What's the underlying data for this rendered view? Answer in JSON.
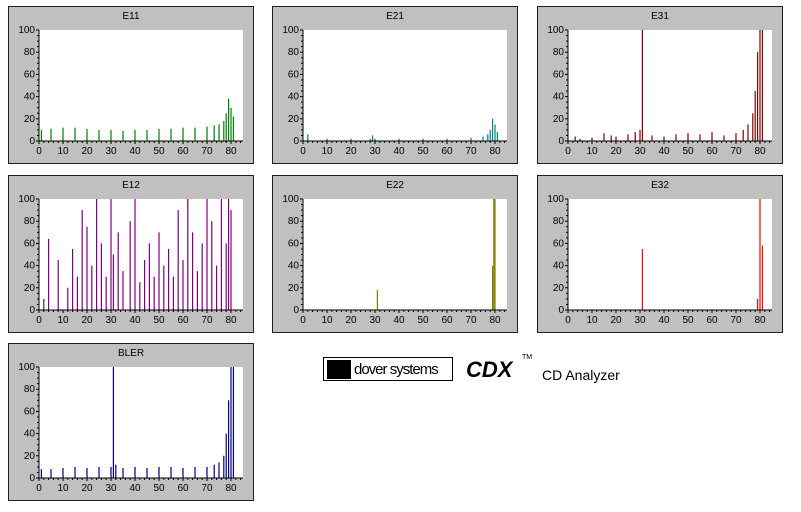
{
  "chart_data": [
    {
      "id": "E11",
      "type": "bar",
      "title": "E11",
      "color": "#008000",
      "ylim": [
        0,
        100
      ],
      "xlim": [
        0,
        85
      ],
      "yticks": [
        0,
        20,
        40,
        60,
        80,
        100
      ],
      "xticks": [
        0,
        10,
        20,
        30,
        40,
        50,
        60,
        70,
        80
      ],
      "series": [
        {
          "x": [
            1,
            5,
            10,
            15,
            20,
            25,
            30,
            35,
            40,
            45,
            50,
            55,
            60,
            65,
            70,
            73,
            75,
            77,
            78,
            79,
            80,
            81
          ],
          "y": [
            10,
            11,
            12,
            12,
            11,
            10,
            10,
            9,
            10,
            10,
            11,
            11,
            12,
            12,
            13,
            14,
            15,
            18,
            25,
            38,
            30,
            22
          ]
        }
      ]
    },
    {
      "id": "E21",
      "type": "bar",
      "title": "E21",
      "color": "#008080",
      "ylim": [
        0,
        100
      ],
      "xlim": [
        0,
        85
      ],
      "yticks": [
        0,
        20,
        40,
        60,
        80,
        100
      ],
      "xticks": [
        0,
        10,
        20,
        30,
        40,
        50,
        60,
        70,
        80
      ],
      "series": [
        {
          "x": [
            2,
            10,
            20,
            28,
            29,
            30,
            40,
            50,
            60,
            70,
            75,
            77,
            78,
            79,
            80,
            81
          ],
          "y": [
            6,
            2,
            2,
            2,
            5,
            2,
            2,
            2,
            2,
            3,
            4,
            6,
            10,
            20,
            15,
            8
          ]
        }
      ]
    },
    {
      "id": "E31",
      "type": "bar",
      "title": "E31",
      "color": "#800000",
      "ylim": [
        0,
        100
      ],
      "xlim": [
        0,
        85
      ],
      "yticks": [
        0,
        20,
        40,
        60,
        80,
        100
      ],
      "xticks": [
        0,
        10,
        20,
        30,
        40,
        50,
        60,
        70,
        80
      ],
      "series": [
        {
          "x": [
            3,
            5,
            10,
            15,
            18,
            20,
            25,
            28,
            30,
            31,
            35,
            40,
            45,
            50,
            55,
            60,
            65,
            70,
            73,
            75,
            77,
            78,
            79,
            80,
            81
          ],
          "y": [
            4,
            2,
            3,
            7,
            5,
            4,
            6,
            8,
            10,
            100,
            5,
            4,
            6,
            7,
            6,
            8,
            5,
            7,
            10,
            15,
            25,
            45,
            80,
            100,
            100
          ]
        }
      ]
    },
    {
      "id": "E12",
      "type": "bar",
      "title": "E12",
      "color": "#800080",
      "ylim": [
        0,
        100
      ],
      "xlim": [
        0,
        85
      ],
      "yticks": [
        0,
        20,
        40,
        60,
        80,
        100
      ],
      "xticks": [
        0,
        10,
        20,
        30,
        40,
        50,
        60,
        70,
        80
      ],
      "series": [
        {
          "x": [
            2,
            4,
            8,
            12,
            14,
            16,
            18,
            20,
            22,
            24,
            26,
            28,
            30,
            31,
            33,
            35,
            38,
            40,
            42,
            44,
            46,
            48,
            50,
            52,
            54,
            56,
            58,
            60,
            62,
            64,
            66,
            68,
            70,
            72,
            74,
            76,
            78,
            79,
            80
          ],
          "y": [
            10,
            64,
            45,
            20,
            55,
            30,
            90,
            75,
            40,
            100,
            60,
            30,
            100,
            50,
            70,
            35,
            80,
            100,
            25,
            45,
            60,
            30,
            70,
            40,
            55,
            30,
            90,
            45,
            100,
            70,
            35,
            60,
            100,
            80,
            40,
            100,
            60,
            100,
            90
          ]
        }
      ]
    },
    {
      "id": "E22",
      "type": "bar",
      "title": "E22",
      "color": "#808000",
      "ylim": [
        0,
        100
      ],
      "xlim": [
        0,
        85
      ],
      "yticks": [
        0,
        20,
        40,
        60,
        80,
        100
      ],
      "xticks": [
        0,
        10,
        20,
        30,
        40,
        50,
        60,
        70,
        80
      ],
      "series": [
        {
          "x": [
            31,
            79,
            79.5,
            80
          ],
          "y": [
            18,
            40,
            100,
            100
          ]
        }
      ]
    },
    {
      "id": "E32",
      "type": "bar",
      "title": "E32",
      "color": "#ff0000",
      "ylim": [
        0,
        100
      ],
      "xlim": [
        0,
        85
      ],
      "yticks": [
        0,
        20,
        40,
        60,
        80,
        100
      ],
      "xticks": [
        0,
        10,
        20,
        30,
        40,
        50,
        60,
        70,
        80
      ],
      "series": [
        {
          "x": [
            31,
            79,
            80,
            81
          ],
          "y": [
            55,
            10,
            100,
            58
          ]
        }
      ]
    },
    {
      "id": "BLER",
      "type": "bar",
      "title": "BLER",
      "color": "#000080",
      "ylim": [
        0,
        100
      ],
      "xlim": [
        0,
        85
      ],
      "yticks": [
        0,
        20,
        40,
        60,
        80,
        100
      ],
      "xticks": [
        0,
        10,
        20,
        30,
        40,
        50,
        60,
        70,
        80
      ],
      "series": [
        {
          "x": [
            1,
            5,
            10,
            15,
            20,
            25,
            30,
            31,
            32,
            35,
            40,
            45,
            50,
            55,
            60,
            65,
            70,
            73,
            75,
            77,
            78,
            79,
            80,
            81
          ],
          "y": [
            8,
            8,
            9,
            10,
            9,
            10,
            10,
            100,
            12,
            9,
            10,
            9,
            10,
            10,
            9,
            10,
            10,
            12,
            14,
            20,
            40,
            70,
            100,
            100
          ]
        }
      ]
    }
  ],
  "logo": {
    "brand": "dover systems",
    "product": "CDX",
    "tm": "TM",
    "subtitle": "CD Analyzer"
  }
}
